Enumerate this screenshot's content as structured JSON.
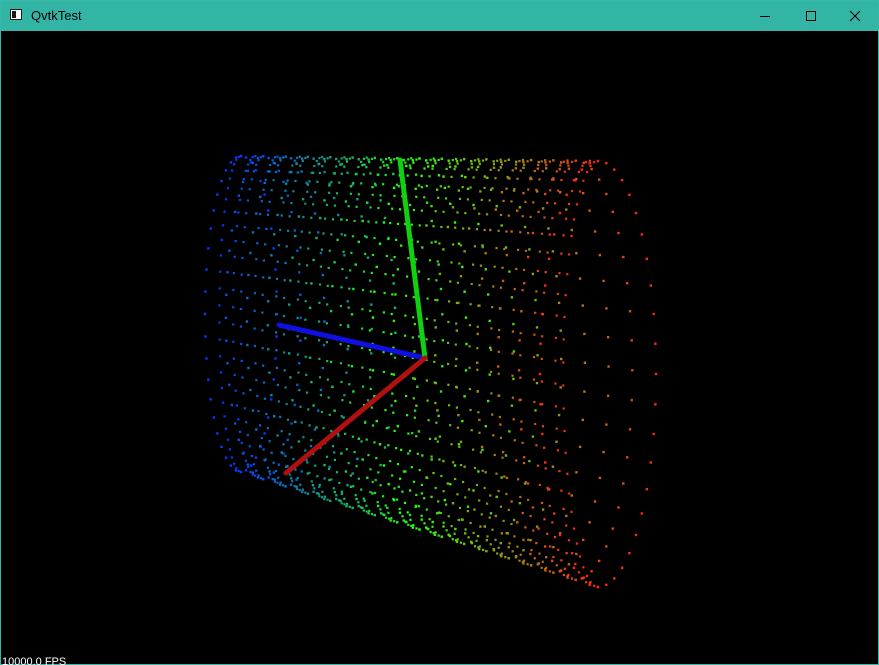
{
  "window": {
    "title": "QvtkTest",
    "title_bar_color": "#33b5a6",
    "icons": {
      "app": "app-window-icon",
      "minimize": "minimize-icon",
      "maximize": "maximize-icon",
      "close": "close-icon"
    }
  },
  "render": {
    "fps_text": "10000.0 FPS",
    "background": "#000000",
    "scene": "point-cloud-cylinder",
    "colormap": [
      "blue",
      "green",
      "red"
    ],
    "axes": {
      "x_color": "#b01010",
      "y_color": "#10d010",
      "z_color": "#1010e0"
    }
  }
}
